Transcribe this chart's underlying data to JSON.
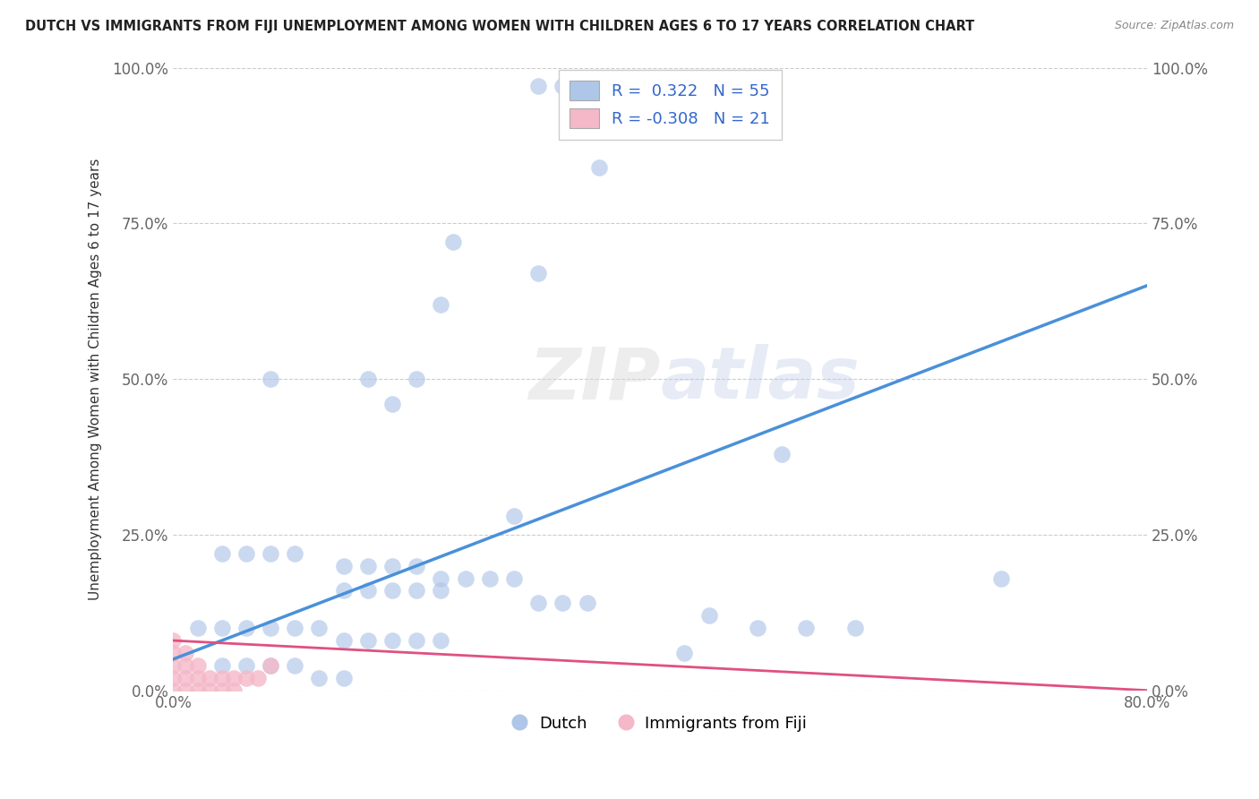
{
  "title": "DUTCH VS IMMIGRANTS FROM FIJI UNEMPLOYMENT AMONG WOMEN WITH CHILDREN AGES 6 TO 17 YEARS CORRELATION CHART",
  "source": "Source: ZipAtlas.com",
  "ylabel": "Unemployment Among Women with Children Ages 6 to 17 years",
  "xlim": [
    0.0,
    0.8
  ],
  "ylim": [
    0.0,
    1.0
  ],
  "ytick_vals": [
    0.0,
    0.25,
    0.5,
    0.75,
    1.0
  ],
  "ytick_labels": [
    "0.0%",
    "25.0%",
    "50.0%",
    "75.0%",
    "100.0%"
  ],
  "xtick_vals": [
    0.0,
    0.8
  ],
  "xtick_labels": [
    "0.0%",
    "80.0%"
  ],
  "dutch_color": "#aec6e8",
  "fiji_color": "#f4b8c8",
  "dutch_line_color": "#4a90d9",
  "fiji_line_color": "#e05080",
  "dutch_R": 0.322,
  "dutch_N": 55,
  "fiji_R": -0.308,
  "fiji_N": 21,
  "dutch_scatter": [
    [
      0.3,
      0.97
    ],
    [
      0.32,
      0.97
    ],
    [
      0.35,
      0.84
    ],
    [
      0.23,
      0.72
    ],
    [
      0.3,
      0.67
    ],
    [
      0.22,
      0.62
    ],
    [
      0.08,
      0.5
    ],
    [
      0.16,
      0.5
    ],
    [
      0.2,
      0.5
    ],
    [
      0.18,
      0.46
    ],
    [
      0.5,
      0.38
    ],
    [
      0.28,
      0.28
    ],
    [
      0.04,
      0.22
    ],
    [
      0.06,
      0.22
    ],
    [
      0.08,
      0.22
    ],
    [
      0.1,
      0.22
    ],
    [
      0.14,
      0.2
    ],
    [
      0.16,
      0.2
    ],
    [
      0.18,
      0.2
    ],
    [
      0.2,
      0.2
    ],
    [
      0.22,
      0.18
    ],
    [
      0.24,
      0.18
    ],
    [
      0.26,
      0.18
    ],
    [
      0.28,
      0.18
    ],
    [
      0.14,
      0.16
    ],
    [
      0.16,
      0.16
    ],
    [
      0.18,
      0.16
    ],
    [
      0.2,
      0.16
    ],
    [
      0.22,
      0.16
    ],
    [
      0.3,
      0.14
    ],
    [
      0.32,
      0.14
    ],
    [
      0.34,
      0.14
    ],
    [
      0.44,
      0.12
    ],
    [
      0.48,
      0.1
    ],
    [
      0.52,
      0.1
    ],
    [
      0.56,
      0.1
    ],
    [
      0.68,
      0.18
    ],
    [
      0.02,
      0.1
    ],
    [
      0.04,
      0.1
    ],
    [
      0.06,
      0.1
    ],
    [
      0.08,
      0.1
    ],
    [
      0.1,
      0.1
    ],
    [
      0.12,
      0.1
    ],
    [
      0.14,
      0.08
    ],
    [
      0.16,
      0.08
    ],
    [
      0.18,
      0.08
    ],
    [
      0.2,
      0.08
    ],
    [
      0.22,
      0.08
    ],
    [
      0.04,
      0.04
    ],
    [
      0.06,
      0.04
    ],
    [
      0.08,
      0.04
    ],
    [
      0.1,
      0.04
    ],
    [
      0.12,
      0.02
    ],
    [
      0.14,
      0.02
    ],
    [
      0.42,
      0.06
    ]
  ],
  "fiji_scatter": [
    [
      0.0,
      0.0
    ],
    [
      0.0,
      0.02
    ],
    [
      0.0,
      0.04
    ],
    [
      0.0,
      0.06
    ],
    [
      0.0,
      0.08
    ],
    [
      0.01,
      0.0
    ],
    [
      0.01,
      0.02
    ],
    [
      0.01,
      0.04
    ],
    [
      0.01,
      0.06
    ],
    [
      0.02,
      0.0
    ],
    [
      0.02,
      0.02
    ],
    [
      0.02,
      0.04
    ],
    [
      0.03,
      0.0
    ],
    [
      0.03,
      0.02
    ],
    [
      0.04,
      0.0
    ],
    [
      0.04,
      0.02
    ],
    [
      0.05,
      0.0
    ],
    [
      0.05,
      0.02
    ],
    [
      0.06,
      0.02
    ],
    [
      0.07,
      0.02
    ],
    [
      0.08,
      0.04
    ]
  ],
  "dutch_line_x0": 0.0,
  "dutch_line_y0": 0.05,
  "dutch_line_x1": 0.8,
  "dutch_line_y1": 0.65,
  "fiji_line_x0": 0.0,
  "fiji_line_y0": 0.08,
  "fiji_line_x1": 0.8,
  "fiji_line_y1": 0.0
}
